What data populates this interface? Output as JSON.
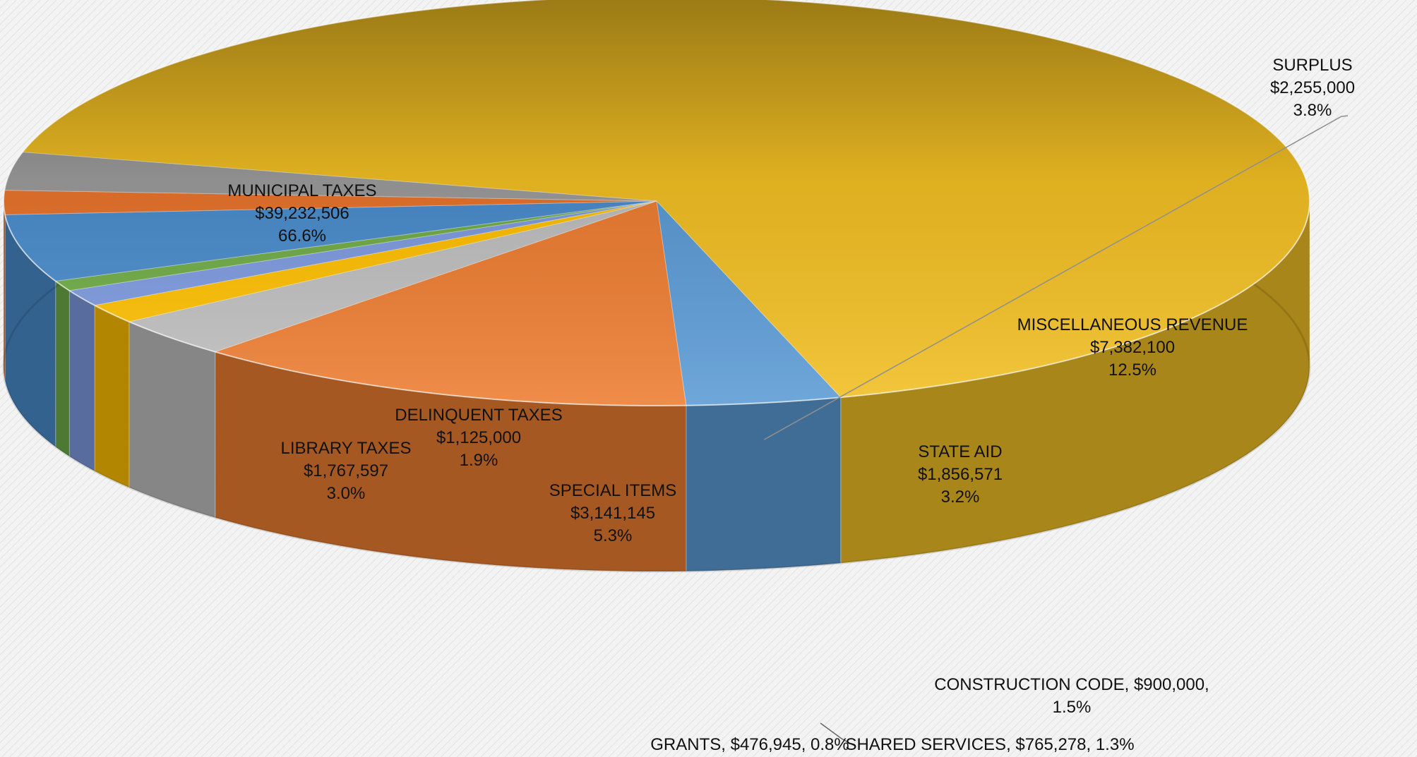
{
  "chart_data": {
    "type": "pie",
    "title": "",
    "categories": [
      "MUNICIPAL TAXES",
      "SURPLUS",
      "MISCELLANEOUS REVENUE",
      "STATE AID",
      "CONSTRUCTION CODE",
      "SHARED SERVICES",
      "GRANTS",
      "SPECIAL ITEMS",
      "DELINQUENT TAXES",
      "LIBRARY TAXES"
    ],
    "value_labels": [
      "$39,232,506",
      "$2,255,000",
      "$7,382,100",
      "$1,856,571",
      "$900,000",
      "$765,278",
      "$476,945",
      "$3,141,145",
      "$1,125,000",
      "$1,767,597"
    ],
    "values": [
      39232506,
      2255000,
      7382100,
      1856571,
      900000,
      765278,
      476945,
      3141145,
      1125000,
      1767597
    ],
    "percent_labels": [
      "66.6%",
      "3.8%",
      "12.5%",
      "3.2%",
      "1.5%",
      "1.3%",
      "0.8%",
      "5.3%",
      "1.9%",
      "3.0%"
    ],
    "colors": [
      "#f2bf23",
      "#5b9bd5",
      "#ed7d31",
      "#bfbfbf",
      "#ffc000",
      "#7e9be0",
      "#70ad47",
      "#4a8ccc",
      "#e8732c",
      "#9b9b9b"
    ],
    "inline_labels": [
      "CONSTRUCTION CODE, $900,000,",
      "1.5%",
      "GRANTS, $476,945, 0.8%",
      "SHARED SERVICES, $765,278, 1.3%"
    ],
    "legend": "none",
    "grid": false
  }
}
